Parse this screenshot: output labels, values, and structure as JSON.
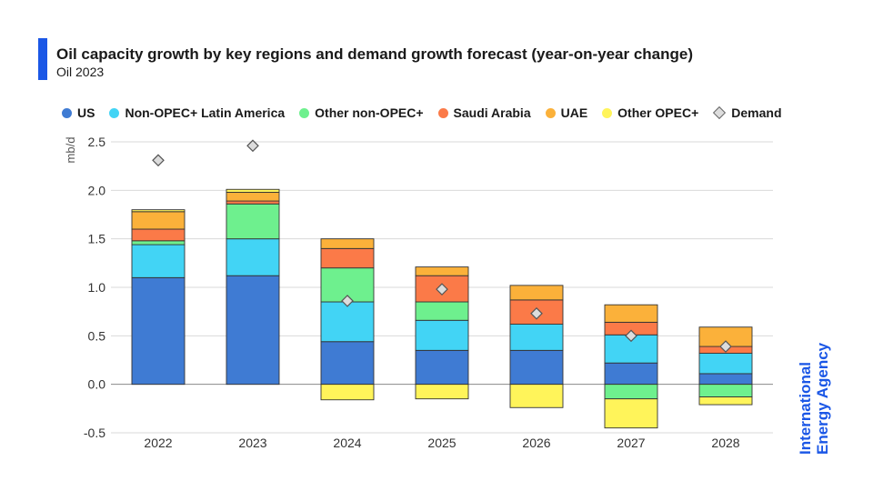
{
  "header": {
    "title": "Oil capacity growth by key regions and demand growth forecast (year-on-year change)",
    "subtitle": "Oil 2023",
    "accent_color": "#1b57e6"
  },
  "brand": {
    "line1": "International",
    "line2": "Energy Agency"
  },
  "chart_data": {
    "type": "bar",
    "stacked": true,
    "title": "Oil capacity growth by key regions and demand growth forecast (year-on-year change)",
    "xlabel": "",
    "ylabel": "mb/d",
    "ylim": [
      -0.5,
      2.5
    ],
    "yticks": [
      -0.5,
      0.0,
      0.5,
      1.0,
      1.5,
      2.0,
      2.5
    ],
    "ytick_labels": [
      "-0.5",
      "0.0",
      "0.5",
      "1.0",
      "1.5",
      "2.0",
      "2.5"
    ],
    "grid": true,
    "legend_position": "top",
    "categories": [
      "2022",
      "2023",
      "2024",
      "2025",
      "2026",
      "2027",
      "2028"
    ],
    "series": [
      {
        "name": "US",
        "color": "#3f7bd3",
        "values": [
          1.1,
          1.12,
          0.44,
          0.35,
          0.35,
          0.22,
          0.11
        ]
      },
      {
        "name": "Non-OPEC+ Latin America",
        "color": "#42d4f5",
        "values": [
          0.34,
          0.38,
          0.41,
          0.31,
          0.27,
          0.29,
          0.21
        ]
      },
      {
        "name": "Other non-OPEC+",
        "color": "#6ef08e",
        "values": [
          0.04,
          0.36,
          0.35,
          0.19,
          0.0,
          -0.15,
          -0.13
        ]
      },
      {
        "name": "Saudi Arabia",
        "color": "#fb7a48",
        "values": [
          0.12,
          0.03,
          0.2,
          0.27,
          0.25,
          0.13,
          0.07
        ]
      },
      {
        "name": "UAE",
        "color": "#fbb13a",
        "values": [
          0.18,
          0.09,
          0.1,
          0.09,
          0.15,
          0.18,
          0.2
        ]
      },
      {
        "name": "Other OPEC+",
        "color": "#fff45a",
        "values": [
          0.02,
          0.03,
          -0.16,
          -0.15,
          -0.24,
          -0.3,
          -0.08
        ]
      }
    ],
    "demand": {
      "name": "Demand",
      "values": [
        2.31,
        2.46,
        0.86,
        0.98,
        0.73,
        0.5,
        0.39
      ]
    }
  }
}
